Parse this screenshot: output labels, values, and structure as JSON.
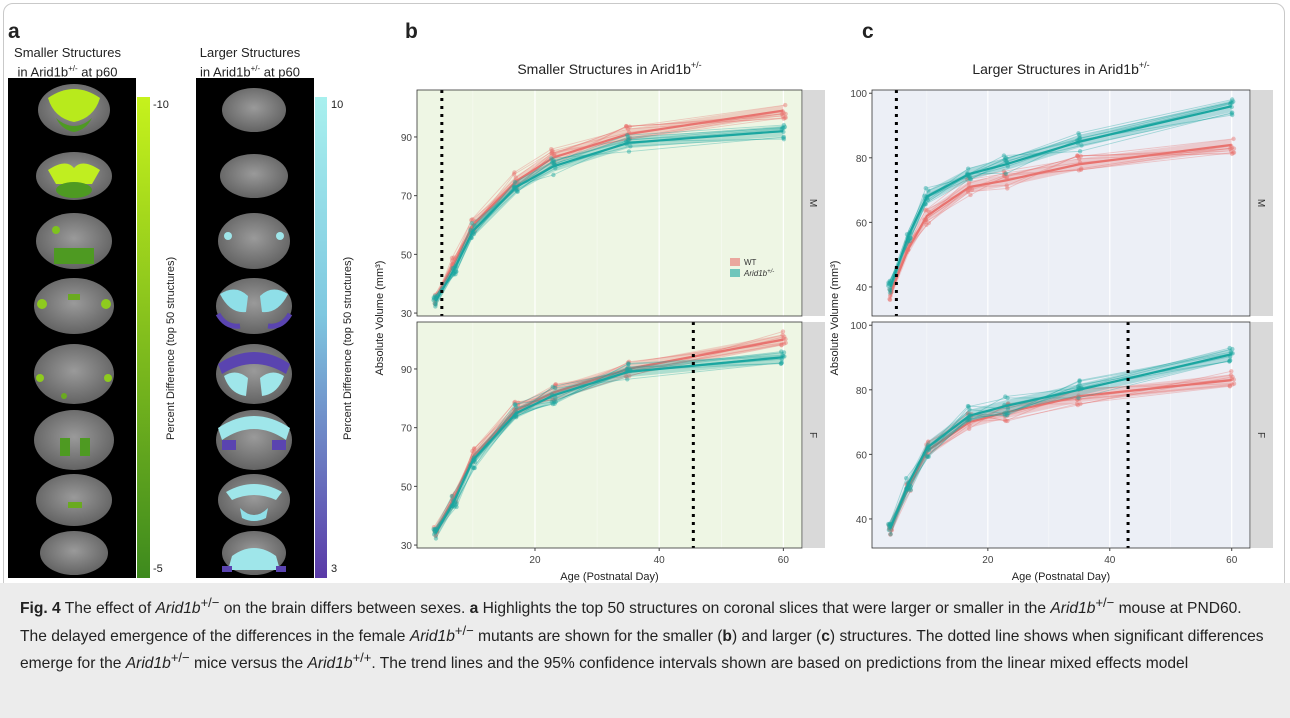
{
  "panel_a": {
    "label": "a",
    "smaller_title_1": "Smaller Structures",
    "smaller_title_2": "in Arid1b",
    "smaller_title_sup": "+/-",
    "smaller_title_3": " at p60",
    "larger_title_1": "Larger Structures",
    "larger_title_2": "in Arid1b",
    "larger_title_sup": "+/-",
    "larger_title_3": " at p60",
    "smaller_cbar_top": "-10",
    "smaller_cbar_bottom": "-5",
    "smaller_cbar_label": "Percent Difference (top 50 structures)",
    "larger_cbar_top": "10",
    "larger_cbar_bottom": "3",
    "larger_cbar_label": "Percent Difference (top 50 structures)",
    "colors": {
      "smaller_hi": "#c6f21c",
      "smaller_lo": "#3e8a1e",
      "larger_hi": "#a8f0ee",
      "larger_lo": "#5a3aa8"
    }
  },
  "panel_b": {
    "label": "b"
  },
  "panel_c": {
    "label": "c"
  },
  "chart_data": [
    {
      "type": "line",
      "title": "Smaller Structures in Arid1b+/-",
      "xlabel": "Age (Postnatal Day)",
      "ylabel": "Absolute Volume (mm³)",
      "xlim": [
        1,
        63
      ],
      "ylim": [
        29,
        106
      ],
      "xticks": [
        20,
        40,
        60
      ],
      "yticks": [
        30,
        50,
        70,
        90
      ],
      "facets": [
        "M",
        "F"
      ],
      "legend": {
        "placement": "inside-right",
        "entries": [
          "WT",
          "Arid1b+/-"
        ]
      },
      "colors": {
        "WT": "#e8736f",
        "Arid1b+/-": "#1aa6a0"
      },
      "background": "#eef6e4",
      "significance_day": {
        "M": 5,
        "F": 45.5
      },
      "series": [
        {
          "name": "WT",
          "facet": "M",
          "x": [
            4,
            7,
            10,
            17,
            23,
            35,
            60
          ],
          "values": [
            35,
            47,
            60,
            75,
            83,
            91,
            99
          ]
        },
        {
          "name": "Arid1b+/-",
          "facet": "M",
          "x": [
            4,
            7,
            10,
            17,
            23,
            35,
            60
          ],
          "values": [
            34,
            45,
            58,
            73,
            80,
            88,
            92
          ]
        },
        {
          "name": "WT",
          "facet": "F",
          "x": [
            4,
            7,
            10,
            17,
            23,
            35,
            60
          ],
          "values": [
            35,
            46,
            60,
            76,
            82,
            90,
            100
          ]
        },
        {
          "name": "Arid1b+/-",
          "facet": "F",
          "x": [
            4,
            7,
            10,
            17,
            23,
            35,
            60
          ],
          "values": [
            34,
            45,
            59,
            75,
            81,
            89,
            94
          ]
        }
      ]
    },
    {
      "type": "line",
      "title": "Larger Structures in Arid1b+/-",
      "xlabel": "Age (Postnatal Day)",
      "ylabel": "Absolute Volume (mm³)",
      "xlim": [
        1,
        63
      ],
      "ylim": [
        31,
        101
      ],
      "xticks": [
        20,
        40,
        60
      ],
      "yticks": [
        40,
        60,
        80,
        100
      ],
      "facets": [
        "M",
        "F"
      ],
      "colors": {
        "WT": "#e8736f",
        "Arid1b+/-": "#1aa6a0"
      },
      "background": "#eceff6",
      "significance_day": {
        "M": 5,
        "F": 43
      },
      "series": [
        {
          "name": "WT",
          "facet": "M",
          "x": [
            4,
            7,
            10,
            17,
            23,
            35,
            60
          ],
          "values": [
            38,
            52,
            62,
            71,
            73,
            78,
            84
          ]
        },
        {
          "name": "Arid1b+/-",
          "facet": "M",
          "x": [
            4,
            7,
            10,
            17,
            23,
            35,
            60
          ],
          "values": [
            40,
            56,
            68,
            75,
            78,
            85,
            96
          ]
        },
        {
          "name": "WT",
          "facet": "F",
          "x": [
            4,
            7,
            10,
            17,
            23,
            35,
            60
          ],
          "values": [
            37,
            50,
            61,
            70,
            73,
            78,
            83
          ]
        },
        {
          "name": "Arid1b+/-",
          "facet": "F",
          "x": [
            4,
            7,
            10,
            17,
            23,
            35,
            60
          ],
          "values": [
            37,
            51,
            62,
            72,
            75,
            80,
            91
          ]
        }
      ]
    }
  ],
  "caption": {
    "fig_label": "Fig. 4",
    "gene": "Arid1b",
    "p1": "  The effect of ",
    "p2": " on the brain differs between sexes. ",
    "a": "a",
    "p3": " Highlights the top 50 structures on coronal slices that were larger or smaller in the ",
    "p4": " mouse at PND60. The delayed emergence of the differences in the female ",
    "p5": " mutants are shown for the smaller (",
    "b": "b",
    "p6": ") and larger (",
    "c": "c",
    "p7": ") structures. The dotted line shows when significant differences emerge for the ",
    "p8": " mice versus the ",
    "p9": ". The trend lines and the 95% confidence intervals shown are based on predictions from the linear mixed effects model",
    "sup_het": "+/−",
    "sup_wt": "+/+"
  }
}
